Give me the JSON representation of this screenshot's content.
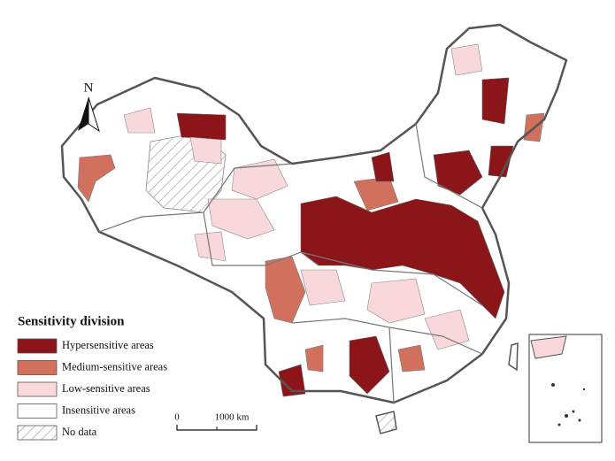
{
  "north_arrow": "N",
  "legend": {
    "title": "Sensitivity division",
    "items": [
      {
        "label": "Hypersensitive areas",
        "color": "#8b1519"
      },
      {
        "label": "Medium-sensitive areas",
        "color": "#d2705e"
      },
      {
        "label": "Low-sensitive areas",
        "color": "#f9d8dc"
      },
      {
        "label": "Insensitive areas",
        "color": "#ffffff"
      },
      {
        "label": "No data",
        "color": "hatch"
      }
    ]
  },
  "scale_bar": {
    "labels": [
      "0",
      "1000 km"
    ]
  }
}
